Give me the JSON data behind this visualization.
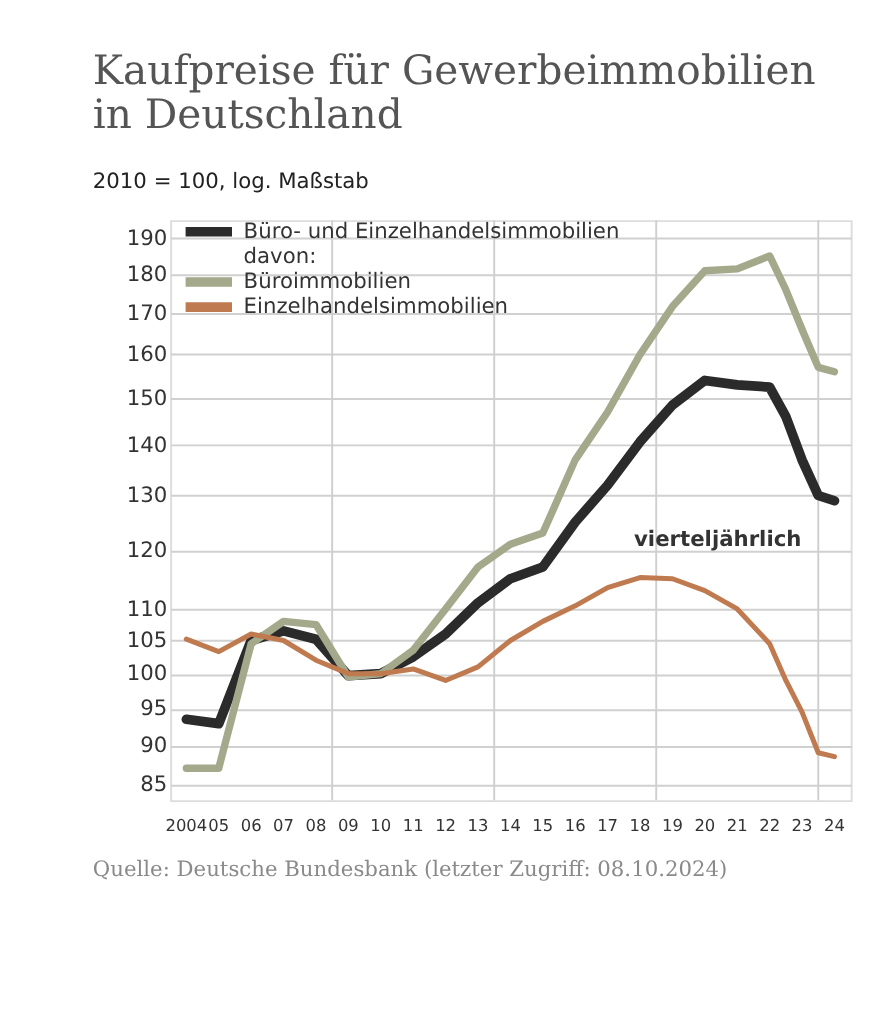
{
  "chart_data": {
    "type": "line",
    "title": [
      "Kaufpreise für Gewerbeimmobilien",
      "in Deutschland"
    ],
    "subtitle": "2010 = 100, log. Maßstab",
    "x": [
      2004,
      2005,
      2006,
      2007,
      2008,
      2009,
      2010,
      2011,
      2012,
      2013,
      2014,
      2015,
      2016,
      2017,
      2018,
      2019,
      2020,
      2021,
      2022,
      2022.5,
      2023,
      2023.5,
      2024
    ],
    "series": [
      {
        "name": "Büro- und Einzelhandelsimmobilien",
        "color": "#2b2b2b",
        "values": [
          93.5,
          92.9,
          105,
          106.5,
          105.2,
          99.7,
          100,
          102.5,
          106,
          111,
          115,
          117,
          125,
          132,
          140.7,
          148.5,
          154,
          153,
          152.5,
          146,
          137,
          130,
          129
        ]
      },
      {
        "name": "Büroimmobilien",
        "color": "#a3a98a",
        "values": [
          87,
          87,
          104.5,
          108,
          107.5,
          99.5,
          100,
          103.5,
          110,
          117,
          121,
          123,
          137,
          147,
          160,
          171.7,
          181,
          181.5,
          185,
          176,
          166,
          157,
          156
        ]
      },
      {
        "name": "Einzelhandelsimmobilien",
        "color": "#c07a4f",
        "values": [
          105.2,
          103.3,
          106,
          105,
          102,
          100,
          100,
          100.7,
          99,
          101,
          105,
          108,
          110.5,
          113.5,
          115.2,
          115,
          113,
          110,
          104.5,
          99,
          94.5,
          89,
          88.5
        ]
      }
    ],
    "xlim": [
      2003.5,
      2024.5
    ],
    "xticks": [
      2004,
      {
        "value": 2005,
        "label": "05"
      },
      {
        "value": 2006,
        "label": "06"
      },
      {
        "value": 2007,
        "label": "07"
      },
      {
        "value": 2008,
        "label": "08"
      },
      {
        "value": 2009,
        "label": "09"
      },
      {
        "value": 2010,
        "label": "10"
      },
      {
        "value": 2011,
        "label": "11"
      },
      {
        "value": 2012,
        "label": "12"
      },
      {
        "value": 2013,
        "label": "13"
      },
      {
        "value": 2014,
        "label": "14"
      },
      {
        "value": 2015,
        "label": "15"
      },
      {
        "value": 2016,
        "label": "16"
      },
      {
        "value": 2017,
        "label": "17"
      },
      {
        "value": 2018,
        "label": "18"
      },
      {
        "value": 2019,
        "label": "19"
      },
      {
        "value": 2020,
        "label": "20"
      },
      {
        "value": 2021,
        "label": "21"
      },
      {
        "value": 2022,
        "label": "22"
      },
      {
        "value": 2023,
        "label": "23"
      },
      {
        "value": 2024,
        "label": "24"
      }
    ],
    "ylim": [
      83,
      195
    ],
    "yticks": [
      85,
      90,
      95,
      100,
      105,
      110,
      120,
      130,
      140,
      150,
      160,
      170,
      180,
      190
    ],
    "log": "y",
    "grid": "y",
    "legend": "top left",
    "marker": "none",
    "line_style": "solid",
    "ref_lines": [
      {
        "axis": "x",
        "value": 2008.5,
        "label": null
      },
      {
        "axis": "x",
        "value": 2013.5,
        "label": null
      },
      {
        "axis": "x",
        "value": 2018.5,
        "label": null
      },
      {
        "axis": "x",
        "value": 2023.5,
        "label": null
      }
    ],
    "annotations": [
      "davon:",
      "Quelle: Deutsche Bundesbank (letzter Zugriff: 08.10.2024)",
      {
        "text": "vierteljährlich",
        "x": 2019.8,
        "y": 113
      }
    ]
  }
}
